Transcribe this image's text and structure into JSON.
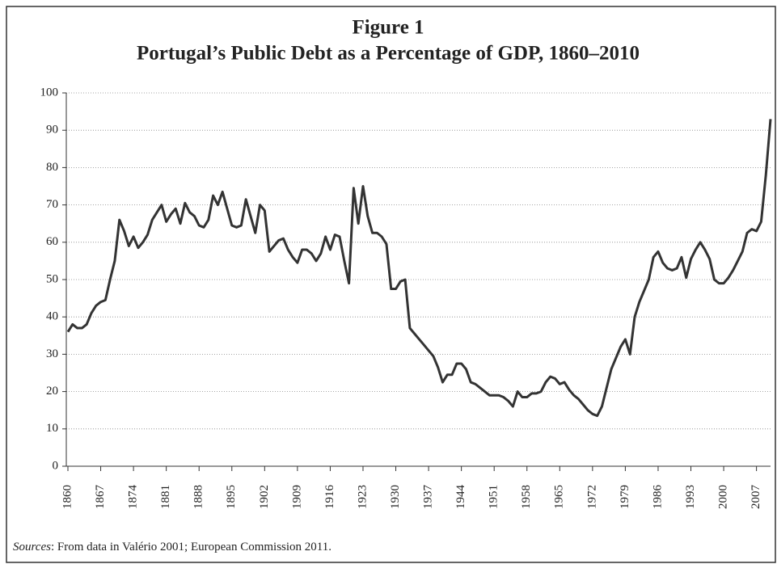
{
  "chart_data": {
    "type": "line",
    "title": "Figure 1",
    "subtitle": "Portugal’s Public Debt as a Percentage of GDP, 1860–2010",
    "source_label": "Sources",
    "source_text": ": From data in Valério 2001; European Commission 2011.",
    "x": [
      1860,
      1861,
      1862,
      1863,
      1864,
      1865,
      1866,
      1867,
      1868,
      1869,
      1870,
      1871,
      1872,
      1873,
      1874,
      1875,
      1876,
      1877,
      1878,
      1879,
      1880,
      1881,
      1882,
      1883,
      1884,
      1885,
      1886,
      1887,
      1888,
      1889,
      1890,
      1891,
      1892,
      1893,
      1894,
      1895,
      1896,
      1897,
      1898,
      1899,
      1900,
      1901,
      1902,
      1903,
      1904,
      1905,
      1906,
      1907,
      1908,
      1909,
      1910,
      1911,
      1912,
      1913,
      1914,
      1915,
      1916,
      1917,
      1918,
      1919,
      1920,
      1921,
      1922,
      1923,
      1924,
      1925,
      1926,
      1927,
      1928,
      1929,
      1930,
      1931,
      1932,
      1933,
      1934,
      1935,
      1936,
      1937,
      1938,
      1939,
      1940,
      1941,
      1942,
      1943,
      1944,
      1945,
      1946,
      1947,
      1948,
      1949,
      1950,
      1951,
      1952,
      1953,
      1954,
      1955,
      1956,
      1957,
      1958,
      1959,
      1960,
      1961,
      1962,
      1963,
      1964,
      1965,
      1966,
      1967,
      1968,
      1969,
      1970,
      1971,
      1972,
      1973,
      1974,
      1975,
      1976,
      1977,
      1978,
      1979,
      1980,
      1981,
      1982,
      1983,
      1984,
      1985,
      1986,
      1987,
      1988,
      1989,
      1990,
      1991,
      1992,
      1993,
      1994,
      1995,
      1996,
      1997,
      1998,
      1999,
      2000,
      2001,
      2002,
      2003,
      2004,
      2005,
      2006,
      2007,
      2008,
      2009,
      2010
    ],
    "series": [
      {
        "color": "#333333",
        "values": [
          36,
          38,
          37,
          37,
          38,
          41,
          43,
          44,
          44.5,
          50,
          55,
          66,
          63,
          59,
          61.5,
          58.5,
          60,
          62,
          66,
          68,
          70,
          65.5,
          67.5,
          69,
          65,
          70.5,
          68,
          67,
          64.5,
          64,
          66,
          72.5,
          70,
          73.5,
          69,
          64.5,
          64,
          64.5,
          71.5,
          67,
          62.5,
          70,
          68.5,
          57.5,
          59,
          60.5,
          61,
          58,
          56,
          54.5,
          58,
          58,
          57,
          55,
          57,
          61.5,
          58,
          62,
          61.5,
          55,
          49,
          74.5,
          65,
          75,
          67,
          62.5,
          62.5,
          61.5,
          59.5,
          47.5,
          47.5,
          49.5,
          50,
          37,
          35.5,
          34,
          32.5,
          31,
          29.5,
          26.5,
          22.5,
          24.5,
          24.5,
          27.5,
          27.5,
          26,
          22.5,
          22,
          21,
          20,
          19,
          19,
          19,
          18.5,
          17.5,
          16,
          20,
          18.5,
          18.5,
          19.5,
          19.5,
          20,
          22.5,
          24,
          23.5,
          22,
          22.5,
          20.5,
          19,
          18,
          16.5,
          15,
          14,
          13.5,
          16,
          21,
          26,
          29,
          32,
          34,
          30,
          40,
          44,
          47,
          50,
          56,
          57.5,
          54.5,
          53,
          52.5,
          53,
          56,
          50.5,
          55.5,
          58,
          60,
          58,
          55.5,
          50,
          49,
          49,
          50.5,
          52.5,
          55,
          57.5,
          62.5,
          63.5,
          63,
          65.5,
          78,
          93
        ]
      }
    ],
    "xlim": [
      1860,
      2010
    ],
    "xticks": [
      1860,
      1867,
      1874,
      1881,
      1888,
      1895,
      1902,
      1909,
      1916,
      1923,
      1930,
      1937,
      1944,
      1951,
      1958,
      1965,
      1972,
      1979,
      1986,
      1993,
      2000,
      2007
    ],
    "ylim": [
      0,
      100
    ],
    "yticks": [
      0,
      10,
      20,
      30,
      40,
      50,
      60,
      70,
      80,
      90,
      100
    ],
    "grid": true
  }
}
